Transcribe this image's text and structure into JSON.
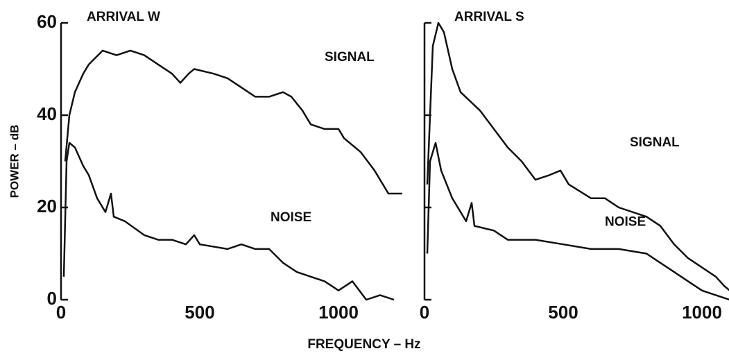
{
  "xlabel": "FREQUENCY – Hz",
  "chart_data": [
    {
      "type": "line",
      "title": "ARRIVAL W",
      "ylabel": "POWER – dB",
      "xlim": [
        0,
        1230
      ],
      "ylim": [
        0,
        60
      ],
      "xticks": [
        0,
        500,
        1000
      ],
      "yticks": [
        0,
        20,
        40,
        60
      ],
      "show_ytick_labels": true,
      "color": "#111",
      "series": [
        {
          "name": "SIGNAL",
          "x": [
            15,
            30,
            50,
            80,
            100,
            150,
            200,
            250,
            300,
            350,
            400,
            430,
            460,
            480,
            550,
            600,
            650,
            700,
            750,
            800,
            830,
            870,
            900,
            950,
            1000,
            1020,
            1080,
            1130,
            1180,
            1230
          ],
          "values": [
            30,
            40,
            45,
            49,
            51,
            54,
            53,
            54,
            53,
            51,
            49,
            47,
            49,
            50,
            49,
            48,
            46,
            44,
            44,
            45,
            44,
            41,
            38,
            37,
            37,
            35,
            32,
            28,
            23,
            23
          ]
        },
        {
          "name": "NOISE",
          "x": [
            10,
            20,
            30,
            50,
            80,
            100,
            130,
            160,
            180,
            190,
            230,
            300,
            350,
            400,
            450,
            480,
            500,
            600,
            650,
            700,
            750,
            800,
            850,
            900,
            950,
            1000,
            1050,
            1100,
            1150,
            1200
          ],
          "values": [
            5,
            30,
            34,
            33,
            29,
            27,
            22,
            19,
            23,
            18,
            17,
            14,
            13,
            13,
            12,
            14,
            12,
            11,
            12,
            11,
            11,
            8,
            6,
            5,
            4,
            2,
            4,
            0,
            1,
            0
          ]
        }
      ]
    },
    {
      "type": "line",
      "title": "ARRIVAL S",
      "xlim": [
        0,
        1100
      ],
      "ylim": [
        0,
        60
      ],
      "xticks": [
        0,
        500,
        1000
      ],
      "yticks": [
        0,
        20,
        40,
        60
      ],
      "show_ytick_labels": false,
      "color": "#111",
      "series": [
        {
          "name": "SIGNAL",
          "x": [
            10,
            20,
            30,
            50,
            70,
            100,
            130,
            200,
            250,
            300,
            350,
            400,
            450,
            490,
            520,
            600,
            650,
            700,
            800,
            850,
            900,
            950,
            1000,
            1050,
            1080,
            1100
          ],
          "values": [
            25,
            40,
            55,
            60,
            58,
            50,
            45,
            41,
            37,
            33,
            30,
            26,
            27,
            28,
            25,
            22,
            22,
            20,
            18,
            16,
            12,
            9,
            7,
            5,
            3,
            2
          ]
        },
        {
          "name": "NOISE",
          "x": [
            10,
            20,
            40,
            60,
            100,
            150,
            170,
            180,
            250,
            300,
            400,
            500,
            600,
            700,
            800,
            850,
            900,
            950,
            1000,
            1050,
            1100
          ],
          "values": [
            10,
            30,
            34,
            28,
            22,
            17,
            21,
            16,
            15,
            13,
            13,
            12,
            11,
            11,
            10,
            8,
            6,
            4,
            2,
            1,
            0
          ]
        }
      ]
    }
  ]
}
